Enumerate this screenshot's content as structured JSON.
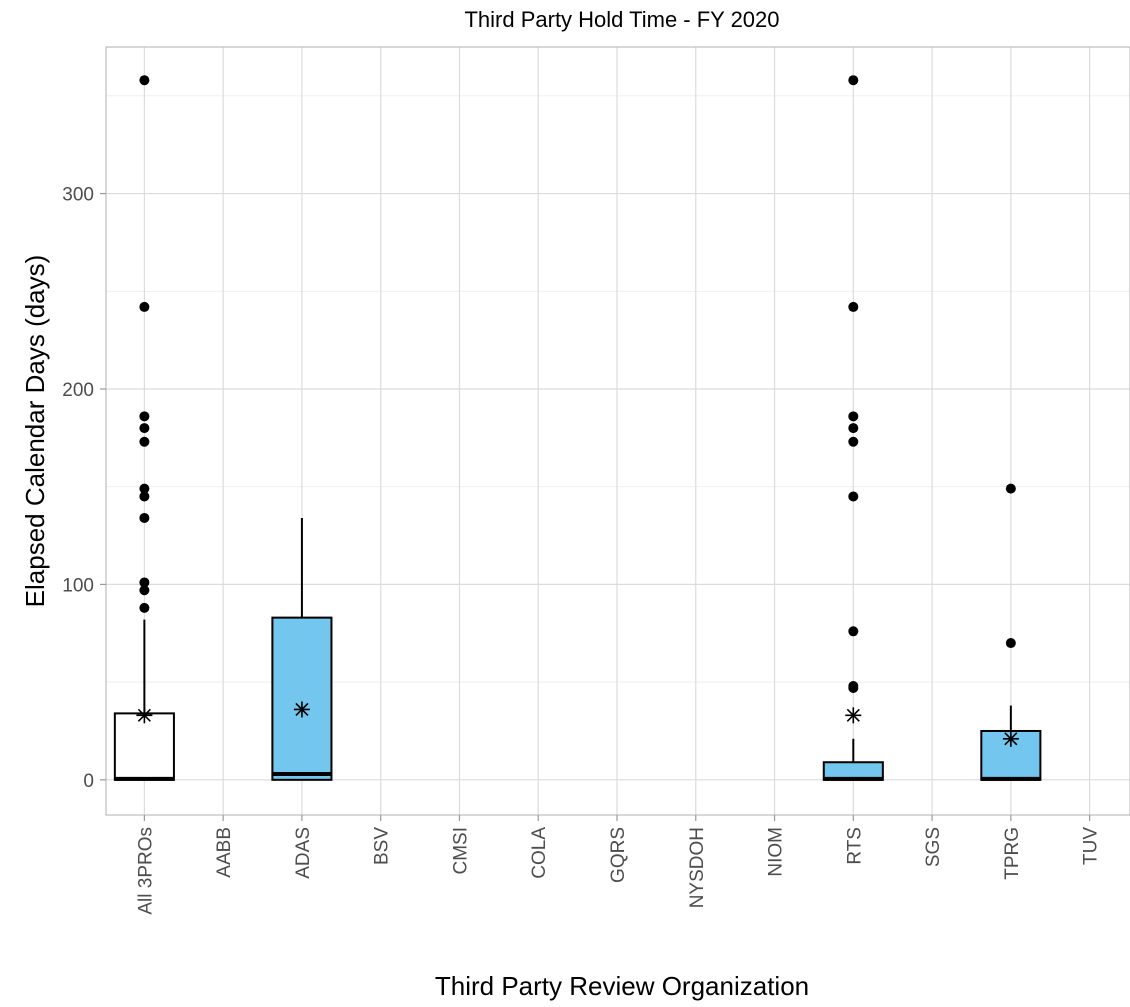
{
  "chart_data": {
    "type": "boxplot",
    "title": "Third Party Hold Time - FY 2020",
    "xlabel": "Third Party Review Organization",
    "ylabel": "Elapsed Calendar Days (days)",
    "ylim": [
      -18,
      375
    ],
    "y_ticks": [
      0,
      100,
      200,
      300
    ],
    "grid": true,
    "categories": [
      "All 3PROs",
      "AABB",
      "ADAS",
      "BSV",
      "CMSI",
      "COLA",
      "GQRS",
      "NYSDOH",
      "NIOM",
      "RTS",
      "SGS",
      "TPRG",
      "TUV"
    ],
    "boxes": [
      {
        "category": "All 3PROs",
        "fill": "#ffffff",
        "q1": 0,
        "median": 0.5,
        "q3": 34,
        "whisker_low": 0,
        "whisker_high": 82,
        "mean": 33,
        "outliers": [
          88,
          97,
          101,
          134,
          145,
          149,
          173,
          180,
          186,
          242,
          358
        ]
      },
      {
        "category": "ADAS",
        "fill": "#73c6ed",
        "q1": 0,
        "median": 3,
        "q3": 83,
        "whisker_low": 0,
        "whisker_high": 134,
        "mean": 36,
        "outliers": []
      },
      {
        "category": "RTS",
        "fill": "#73c6ed",
        "q1": 0,
        "median": 0.5,
        "q3": 9,
        "whisker_low": 0,
        "whisker_high": 21,
        "mean": 33,
        "outliers": [
          47,
          48,
          76,
          145,
          173,
          180,
          186,
          242,
          358
        ]
      },
      {
        "category": "TPRG",
        "fill": "#73c6ed",
        "q1": 0,
        "median": 0.5,
        "q3": 25,
        "whisker_low": 0,
        "whisker_high": 38,
        "mean": 21,
        "outliers": [
          70,
          149
        ]
      }
    ]
  }
}
